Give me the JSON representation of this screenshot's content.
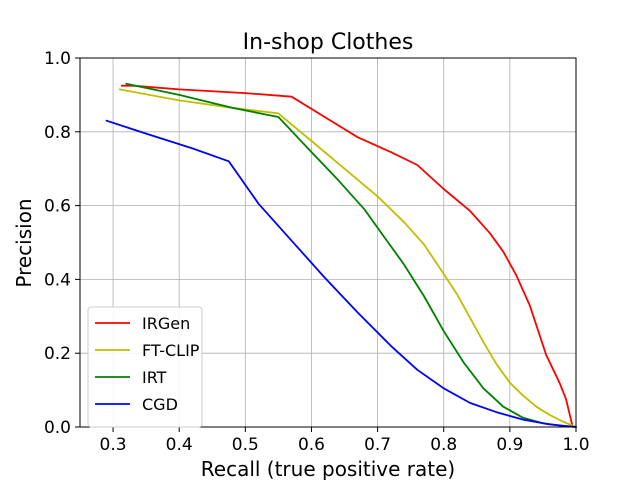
{
  "chart_data": {
    "type": "line",
    "title": "In-shop Clothes",
    "xlabel": "Recall (true positive rate)",
    "ylabel": "Precision",
    "xlim": [
      0.25,
      1.0
    ],
    "ylim": [
      0.0,
      1.0
    ],
    "xticks": [
      0.3,
      0.4,
      0.5,
      0.6,
      0.7,
      0.8,
      0.9,
      1.0
    ],
    "yticks": [
      0.0,
      0.2,
      0.4,
      0.6,
      0.8,
      1.0
    ],
    "xtick_labels": [
      "0.3",
      "0.4",
      "0.5",
      "0.6",
      "0.7",
      "0.8",
      "0.9",
      "1.0"
    ],
    "ytick_labels": [
      "0.0",
      "0.2",
      "0.4",
      "0.6",
      "0.8",
      "1.0"
    ],
    "grid": true,
    "legend_position": "lower-left",
    "series": [
      {
        "name": "IRGen",
        "color": "#ff0000",
        "x": [
          0.313,
          0.33,
          0.4,
          0.5,
          0.57,
          0.62,
          0.67,
          0.72,
          0.76,
          0.8,
          0.84,
          0.87,
          0.89,
          0.91,
          0.93,
          0.955,
          0.975,
          0.985,
          0.995
        ],
        "y": [
          0.925,
          0.925,
          0.915,
          0.905,
          0.895,
          0.84,
          0.785,
          0.745,
          0.71,
          0.645,
          0.585,
          0.525,
          0.475,
          0.41,
          0.33,
          0.195,
          0.12,
          0.075,
          0.0
        ]
      },
      {
        "name": "FT-CLIP",
        "color": "#bfbf00",
        "x": [
          0.31,
          0.4,
          0.48,
          0.55,
          0.6,
          0.65,
          0.7,
          0.74,
          0.77,
          0.8,
          0.82,
          0.84,
          0.86,
          0.88,
          0.9,
          0.92,
          0.94,
          0.96,
          0.98,
          1.0
        ],
        "y": [
          0.915,
          0.885,
          0.865,
          0.85,
          0.775,
          0.7,
          0.625,
          0.555,
          0.495,
          0.415,
          0.36,
          0.295,
          0.23,
          0.17,
          0.12,
          0.085,
          0.055,
          0.033,
          0.015,
          0.0
        ]
      },
      {
        "name": "IRT",
        "color": "#008000",
        "x": [
          0.32,
          0.4,
          0.48,
          0.55,
          0.6,
          0.64,
          0.68,
          0.71,
          0.74,
          0.77,
          0.8,
          0.83,
          0.86,
          0.89,
          0.92,
          0.95,
          0.98,
          1.0
        ],
        "y": [
          0.93,
          0.9,
          0.865,
          0.84,
          0.745,
          0.67,
          0.59,
          0.515,
          0.44,
          0.355,
          0.26,
          0.175,
          0.105,
          0.055,
          0.025,
          0.01,
          0.003,
          0.0
        ]
      },
      {
        "name": "CGD",
        "color": "#0000ff",
        "x": [
          0.29,
          0.35,
          0.42,
          0.475,
          0.52,
          0.57,
          0.62,
          0.67,
          0.72,
          0.76,
          0.8,
          0.84,
          0.88,
          0.92,
          0.96,
          1.0
        ],
        "y": [
          0.83,
          0.795,
          0.755,
          0.72,
          0.605,
          0.505,
          0.405,
          0.31,
          0.22,
          0.155,
          0.105,
          0.065,
          0.04,
          0.02,
          0.007,
          0.0
        ]
      }
    ]
  }
}
